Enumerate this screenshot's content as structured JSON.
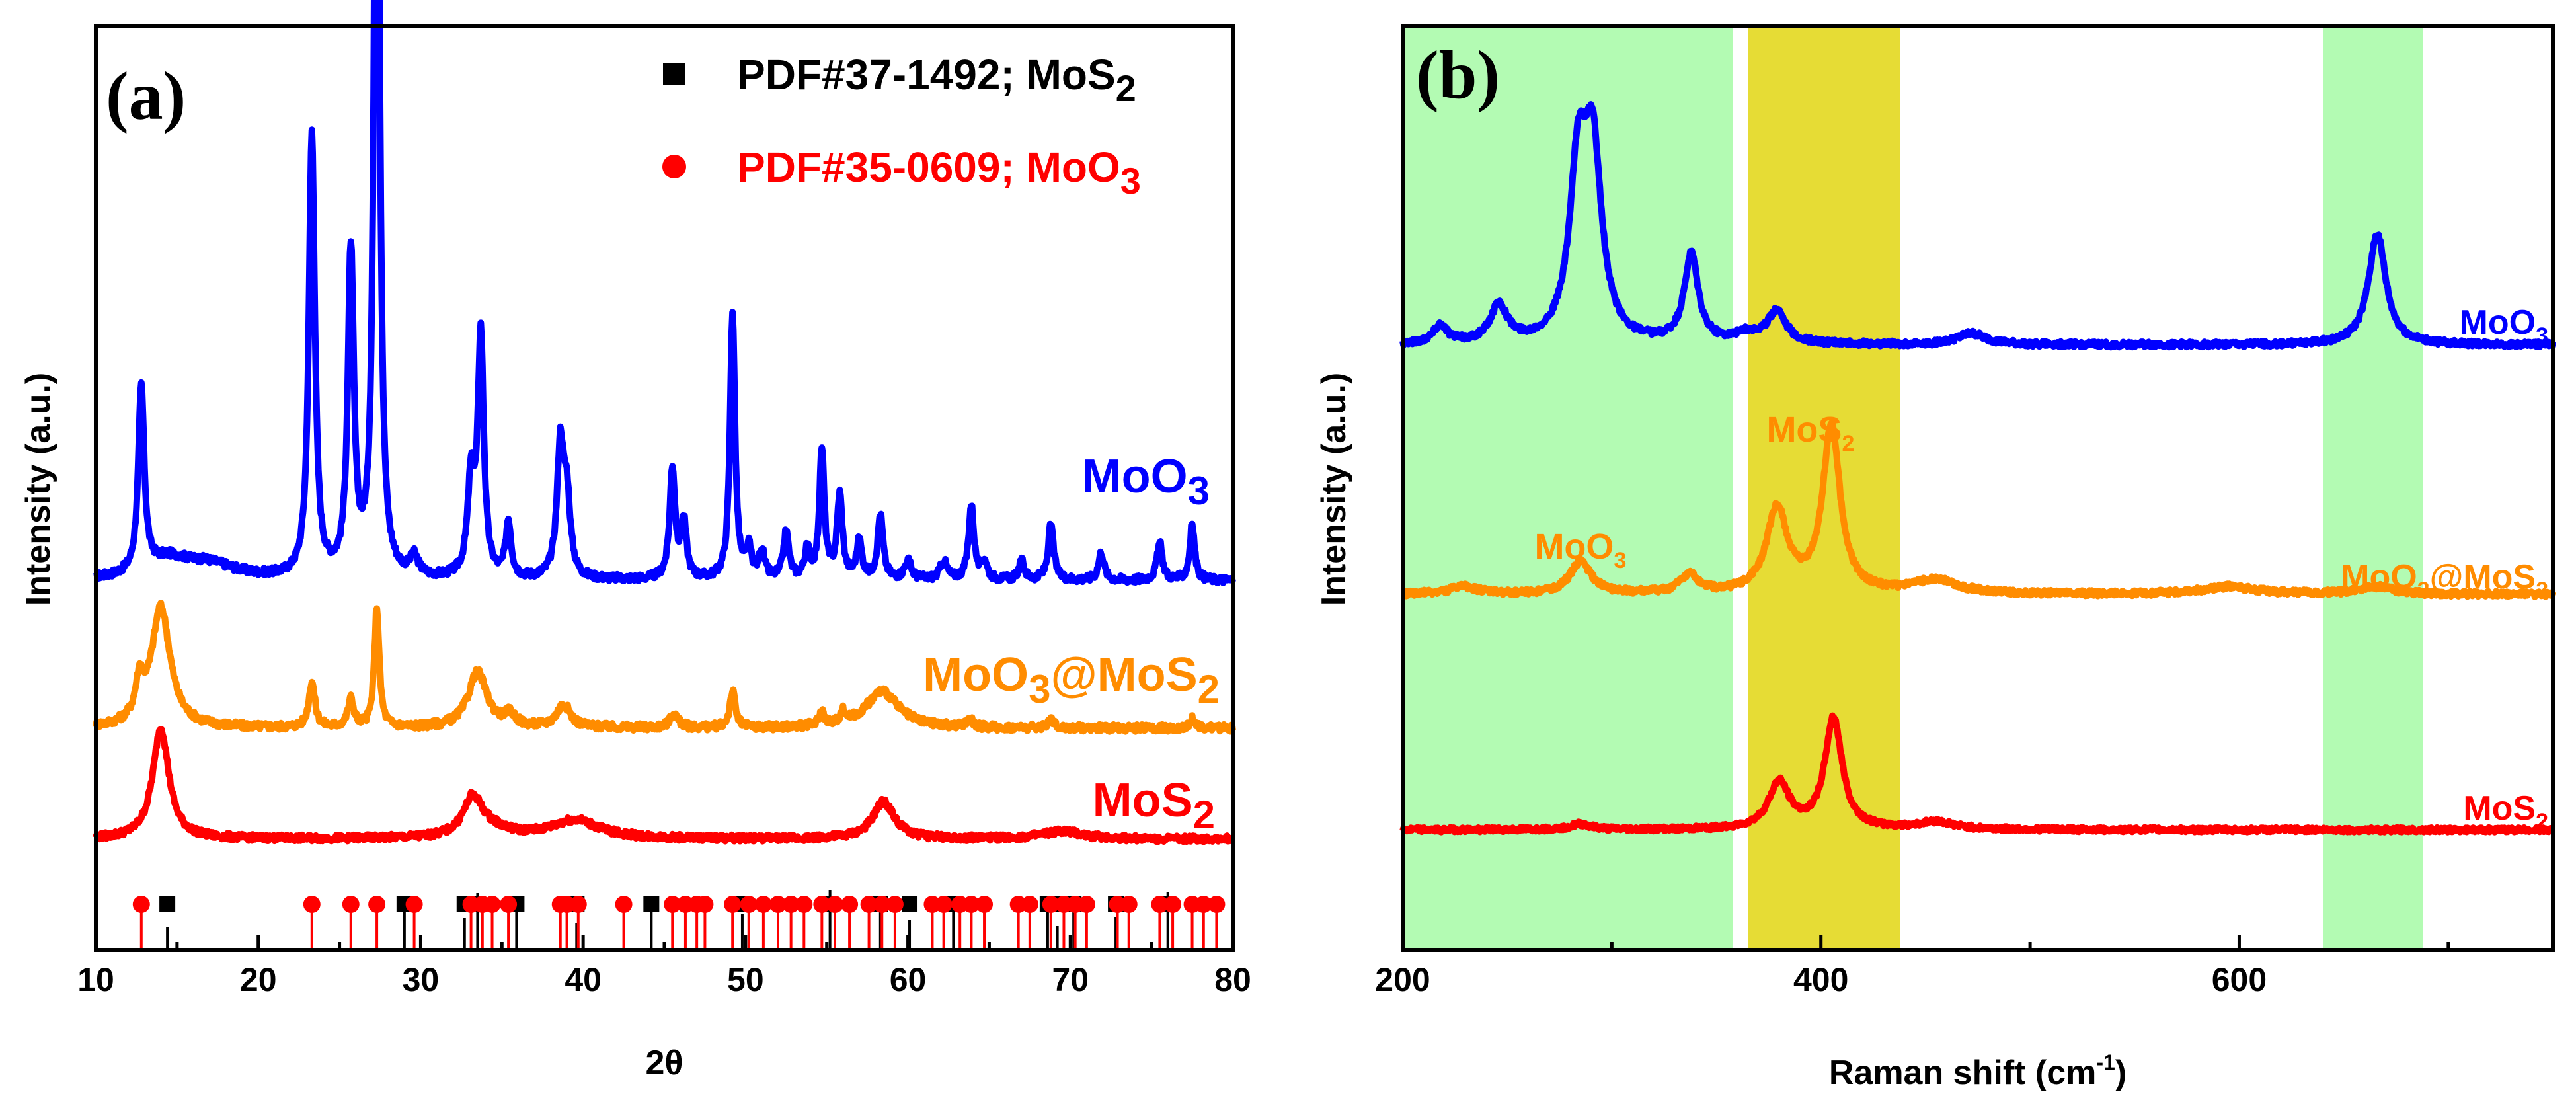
{
  "chart_data": [
    {
      "type": "line",
      "panel_label": "(a)",
      "xlabel": "2θ",
      "ylabel": "Intensity (a.u.)",
      "xlim": [
        10,
        80
      ],
      "xticks": [
        "10",
        "20",
        "30",
        "40",
        "50",
        "60",
        "70",
        "80"
      ],
      "yticks": [],
      "legend": {
        "placement": "top-right",
        "entries": [
          {
            "marker": "square",
            "color": "#000000",
            "text": "PDF#37-1492; MoS",
            "sub": "2"
          },
          {
            "marker": "circle",
            "color": "#ff0000",
            "text": "PDF#35-0609; MoO",
            "sub": "3"
          }
        ]
      },
      "series": [
        {
          "name": "MoO3",
          "label": "MoO",
          "sub": "3",
          "color": "#0000ff",
          "baseline": 0.4,
          "noise": 0.004,
          "peaks": [
            [
              12.8,
              0.2,
              0.22
            ],
            [
              14.5,
              0.02,
              1.6
            ],
            [
              17,
              0.015,
              2.0
            ],
            [
              23.3,
              0.48,
              0.22
            ],
            [
              25.7,
              0.35,
              0.22
            ],
            [
              27.3,
              1.15,
              0.18
            ],
            [
              29.6,
              0.02,
              0.3
            ],
            [
              33.1,
              0.1,
              0.25
            ],
            [
              33.7,
              0.26,
              0.22
            ],
            [
              35.4,
              0.06,
              0.2
            ],
            [
              38.6,
              0.14,
              0.25
            ],
            [
              39.0,
              0.08,
              0.25
            ],
            [
              45.5,
              0.12,
              0.2
            ],
            [
              46.2,
              0.06,
              0.2
            ],
            [
              49.2,
              0.29,
              0.18
            ],
            [
              50.2,
              0.03,
              0.2
            ],
            [
              51.0,
              0.03,
              0.2
            ],
            [
              52.5,
              0.05,
              0.2
            ],
            [
              53.8,
              0.03,
              0.2
            ],
            [
              54.7,
              0.14,
              0.18
            ],
            [
              55.8,
              0.09,
              0.2
            ],
            [
              57.0,
              0.04,
              0.2
            ],
            [
              58.3,
              0.07,
              0.2
            ],
            [
              60.0,
              0.02,
              0.25
            ],
            [
              62.2,
              0.02,
              0.25
            ],
            [
              63.9,
              0.08,
              0.2
            ],
            [
              64.7,
              0.02,
              0.2
            ],
            [
              67.0,
              0.02,
              0.2
            ],
            [
              68.8,
              0.06,
              0.2
            ],
            [
              71.9,
              0.03,
              0.2
            ],
            [
              75.5,
              0.04,
              0.2
            ],
            [
              77.5,
              0.06,
              0.18
            ]
          ]
        },
        {
          "name": "MoO3@MoS2",
          "label": "MoO",
          "sub": "3",
          "label_b": "@MoS",
          "sub_b": "2",
          "color": "#ff8c00",
          "baseline": 0.24,
          "noise": 0.004,
          "peaks": [
            [
              12.7,
              0.04,
              0.3
            ],
            [
              14.0,
              0.13,
              0.7
            ],
            [
              23.3,
              0.05,
              0.22
            ],
            [
              25.7,
              0.03,
              0.22
            ],
            [
              27.3,
              0.13,
              0.18
            ],
            [
              33.5,
              0.06,
              0.7
            ],
            [
              35.5,
              0.012,
              0.4
            ],
            [
              38.8,
              0.025,
              0.5
            ],
            [
              45.6,
              0.015,
              0.3
            ],
            [
              49.2,
              0.04,
              0.2
            ],
            [
              54.7,
              0.015,
              0.2
            ],
            [
              56.0,
              0.012,
              0.2
            ],
            [
              58.4,
              0.04,
              1.2
            ],
            [
              63.8,
              0.01,
              0.2
            ],
            [
              68.8,
              0.01,
              0.2
            ],
            [
              77.5,
              0.01,
              0.2
            ]
          ]
        },
        {
          "name": "MoS2",
          "label": "MoS",
          "sub": "2",
          "color": "#ff0000",
          "baseline": 0.12,
          "noise": 0.0035,
          "peaks": [
            [
              14.0,
              0.12,
              0.6
            ],
            [
              33.2,
              0.04,
              0.7
            ],
            [
              34.2,
              0.01,
              1.5
            ],
            [
              39.5,
              0.02,
              1.8
            ],
            [
              58.5,
              0.04,
              0.8
            ],
            [
              69.5,
              0.008,
              1.5
            ]
          ]
        }
      ],
      "reference_ticks": {
        "MoS2": [
          14.4,
          29.0,
          32.7,
          33.5,
          35.9,
          39.6,
          44.2,
          49.8,
          55.2,
          58.3,
          60.1,
          62.8,
          68.6,
          69.2,
          70.2,
          72.8,
          76.0
        ],
        "MoO3": [
          12.8,
          23.3,
          25.7,
          27.3,
          29.6,
          33.1,
          33.8,
          34.4,
          35.4,
          38.6,
          39.0,
          39.7,
          42.5,
          45.5,
          46.3,
          47.0,
          47.5,
          49.2,
          50.2,
          51.1,
          52.0,
          52.8,
          53.6,
          54.7,
          55.5,
          56.4,
          57.6,
          58.4,
          59.2,
          61.5,
          62.2,
          63.2,
          63.9,
          64.7,
          66.8,
          67.5,
          68.8,
          69.6,
          70.3,
          71.0,
          72.9,
          73.6,
          75.5,
          76.3,
          77.5,
          78.2,
          79.0
        ]
      }
    },
    {
      "type": "line",
      "panel_label": "(b)",
      "xlabel": "Raman shift (cm",
      "xlabel_sup": "-1",
      "xlabel_end": ")",
      "ylabel": "Intensity (a.u.)",
      "xlim": [
        200,
        750
      ],
      "xticks": [
        "200",
        "400",
        "600"
      ],
      "yticks": [],
      "bands": [
        {
          "from": 200,
          "to": 358,
          "color": "#b3fbb3"
        },
        {
          "from": 365,
          "to": 438,
          "color": "#e6dc35"
        },
        {
          "from": 640,
          "to": 688,
          "color": "#b3fbb3"
        }
      ],
      "annotations": [
        {
          "text": "MoS",
          "sub": "2",
          "x": 395,
          "color": "#ff8c00"
        },
        {
          "text": "MoO",
          "sub": "3",
          "x": 285,
          "color": "#ff8c00"
        }
      ],
      "series": [
        {
          "name": "MoO3",
          "label": "MoO",
          "sub": "3",
          "color": "#0000ff",
          "baseline": 0.655,
          "noise": 0.003,
          "peaks": [
            [
              218,
              0.02,
              4
            ],
            [
              246,
              0.04,
              5
            ],
            [
              284,
              0.18,
              5
            ],
            [
              291,
              0.19,
              5
            ],
            [
              338,
              0.095,
              4
            ],
            [
              365,
              0.01,
              8
            ],
            [
              379,
              0.035,
              5
            ],
            [
              472,
              0.012,
              8
            ],
            [
              666,
              0.12,
              5
            ]
          ]
        },
        {
          "name": "MoO3@MoS2",
          "label": "MoO",
          "sub": "3",
          "label_b": "@MoS",
          "sub_b": "2",
          "color": "#ff8c00",
          "baseline": 0.385,
          "noise": 0.003,
          "peaks": [
            [
              229,
              0.008,
              8
            ],
            [
              285,
              0.035,
              6
            ],
            [
              337,
              0.02,
              5
            ],
            [
              379,
              0.09,
              6
            ],
            [
              405,
              0.18,
              5
            ],
            [
              455,
              0.015,
              12
            ],
            [
              595,
              0.008,
              15
            ],
            [
              665,
              0.008,
              10
            ]
          ]
        },
        {
          "name": "MoS2",
          "label": "MoS",
          "sub": "2",
          "color": "#ff0000",
          "baseline": 0.13,
          "noise": 0.0025,
          "peaks": [
            [
              285,
              0.006,
              6
            ],
            [
              380,
              0.05,
              6
            ],
            [
              406,
              0.12,
              5
            ],
            [
              455,
              0.008,
              10
            ]
          ]
        }
      ]
    }
  ]
}
